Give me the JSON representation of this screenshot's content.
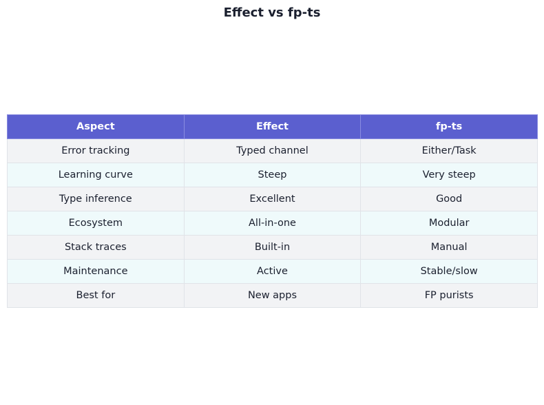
{
  "title": "Effect vs fp-ts",
  "table": {
    "header": [
      "Aspect",
      "Effect",
      "fp-ts"
    ],
    "rows": [
      [
        "Error tracking",
        "Typed channel",
        "Either/Task"
      ],
      [
        "Learning curve",
        "Steep",
        "Very steep"
      ],
      [
        "Type inference",
        "Excellent",
        "Good"
      ],
      [
        "Ecosystem",
        "All-in-one",
        "Modular"
      ],
      [
        "Stack traces",
        "Built-in",
        "Manual"
      ],
      [
        "Maintenance",
        "Active",
        "Stable/slow"
      ],
      [
        "Best for",
        "New apps",
        "FP purists"
      ]
    ]
  }
}
